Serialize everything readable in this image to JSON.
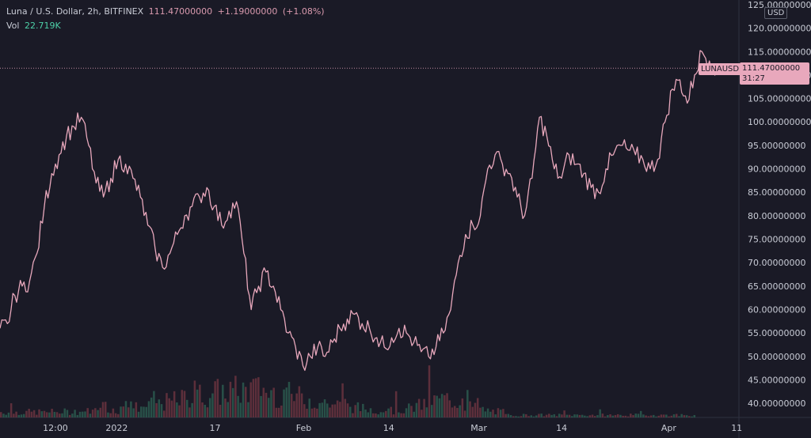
{
  "header": {
    "symbol_line": "Luna / U.S. Dollar, 2h, BITFINEX",
    "last_price": "111.47000000",
    "change": "+1.19000000",
    "change_pct": "(+1.08%)",
    "vol_label": "Vol",
    "vol_value": "22.719K"
  },
  "price_axis": {
    "currency": "USD",
    "last_price_label": "111.47000000",
    "countdown": "31:27",
    "ticker_label": "LUNAUSD"
  },
  "colors": {
    "background": "#1a1a26",
    "line": "#e8a8bc",
    "volume_up": "#2b5a4f",
    "volume_down": "#6a3440",
    "text": "#c9ccd6"
  },
  "chart_data": {
    "type": "line",
    "ylim": [
      37,
      126
    ],
    "y_ticks": [
      "40.00000000",
      "45.00000000",
      "50.00000000",
      "55.00000000",
      "60.00000000",
      "65.00000000",
      "70.00000000",
      "75.00000000",
      "80.00000000",
      "85.00000000",
      "90.00000000",
      "95.00000000",
      "100.00000000",
      "105.00000000",
      "110.00000000",
      "115.00000000",
      "120.00000000",
      "125.00000000"
    ],
    "x_ticks": [
      {
        "label": "12:00",
        "pos": 0.075
      },
      {
        "label": "2022",
        "pos": 0.158
      },
      {
        "label": "17",
        "pos": 0.291
      },
      {
        "label": "Feb",
        "pos": 0.411
      },
      {
        "label": "14",
        "pos": 0.526
      },
      {
        "label": "Mar",
        "pos": 0.648
      },
      {
        "label": "14",
        "pos": 0.76
      },
      {
        "label": "Apr",
        "pos": 0.905
      },
      {
        "label": "11",
        "pos": 0.997
      }
    ],
    "series": [
      {
        "points": [
          [
            0,
            56
          ],
          [
            0.01,
            57
          ],
          [
            0.02,
            63
          ],
          [
            0.03,
            65
          ],
          [
            0.04,
            66
          ],
          [
            0.05,
            72
          ],
          [
            0.06,
            82
          ],
          [
            0.07,
            89
          ],
          [
            0.08,
            93
          ],
          [
            0.09,
            97
          ],
          [
            0.1,
            99
          ],
          [
            0.11,
            101
          ],
          [
            0.12,
            95
          ],
          [
            0.13,
            87
          ],
          [
            0.14,
            84
          ],
          [
            0.15,
            88
          ],
          [
            0.16,
            92
          ],
          [
            0.17,
            91
          ],
          [
            0.18,
            88
          ],
          [
            0.19,
            84
          ],
          [
            0.2,
            78
          ],
          [
            0.21,
            73
          ],
          [
            0.22,
            69
          ],
          [
            0.23,
            72
          ],
          [
            0.24,
            76
          ],
          [
            0.25,
            80
          ],
          [
            0.26,
            82
          ],
          [
            0.27,
            84
          ],
          [
            0.28,
            86
          ],
          [
            0.29,
            82
          ],
          [
            0.3,
            78
          ],
          [
            0.31,
            81
          ],
          [
            0.32,
            83
          ],
          [
            0.33,
            72
          ],
          [
            0.34,
            60
          ],
          [
            0.35,
            65
          ],
          [
            0.36,
            68
          ],
          [
            0.37,
            65
          ],
          [
            0.38,
            60
          ],
          [
            0.39,
            55
          ],
          [
            0.4,
            52
          ],
          [
            0.41,
            48
          ],
          [
            0.42,
            50
          ],
          [
            0.43,
            52
          ],
          [
            0.44,
            50
          ],
          [
            0.45,
            53
          ],
          [
            0.46,
            56
          ],
          [
            0.47,
            58
          ],
          [
            0.48,
            59
          ],
          [
            0.49,
            57
          ],
          [
            0.5,
            56
          ],
          [
            0.51,
            54
          ],
          [
            0.52,
            52
          ],
          [
            0.53,
            54
          ],
          [
            0.54,
            56
          ],
          [
            0.55,
            55
          ],
          [
            0.56,
            53
          ],
          [
            0.57,
            51
          ],
          [
            0.58,
            50
          ],
          [
            0.59,
            52
          ],
          [
            0.6,
            55
          ],
          [
            0.61,
            60
          ],
          [
            0.62,
            70
          ],
          [
            0.63,
            76
          ],
          [
            0.64,
            78
          ],
          [
            0.65,
            80
          ],
          [
            0.66,
            90
          ],
          [
            0.67,
            93
          ],
          [
            0.68,
            91
          ],
          [
            0.69,
            89
          ],
          [
            0.7,
            84
          ],
          [
            0.71,
            80
          ],
          [
            0.72,
            88
          ],
          [
            0.73,
            101
          ],
          [
            0.74,
            97
          ],
          [
            0.75,
            90
          ],
          [
            0.76,
            88
          ],
          [
            0.77,
            93
          ],
          [
            0.78,
            91
          ],
          [
            0.79,
            89
          ],
          [
            0.8,
            86
          ],
          [
            0.81,
            85
          ],
          [
            0.82,
            90
          ],
          [
            0.83,
            93
          ],
          [
            0.84,
            95
          ],
          [
            0.85,
            94
          ],
          [
            0.86,
            93
          ],
          [
            0.87,
            92
          ],
          [
            0.88,
            90
          ],
          [
            0.89,
            92
          ],
          [
            0.9,
            100
          ],
          [
            0.91,
            107
          ],
          [
            0.92,
            109
          ],
          [
            0.93,
            104
          ],
          [
            0.94,
            110
          ],
          [
            0.95,
            115
          ],
          [
            0.96,
            113
          ],
          [
            0.97,
            111.47
          ]
        ]
      }
    ]
  }
}
